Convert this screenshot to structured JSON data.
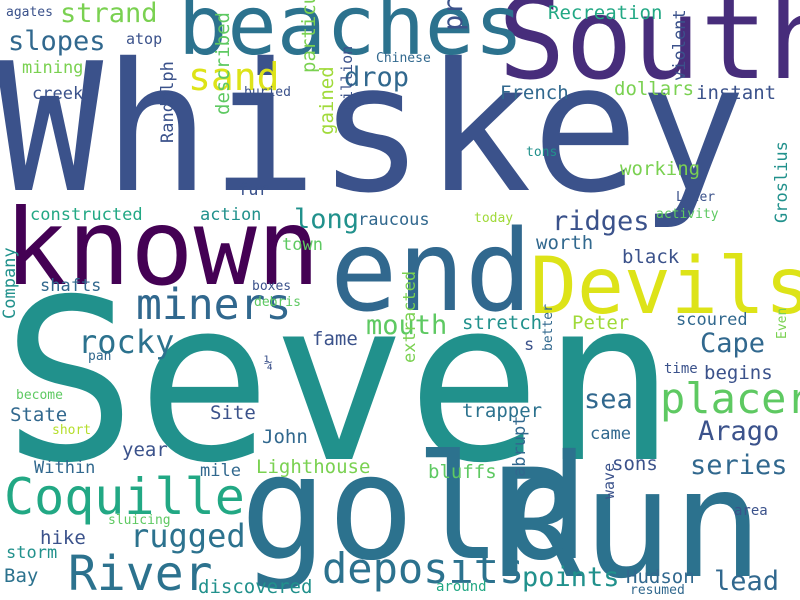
{
  "words": [
    {
      "text": "Whiskey",
      "color": "#3b528b"
    },
    {
      "text": "Seven",
      "color": "#21918c"
    },
    {
      "text": "Run",
      "color": "#2c728e"
    },
    {
      "text": "gold",
      "color": "#2c728e"
    },
    {
      "text": "South",
      "color": "#472d7b"
    },
    {
      "text": "known",
      "color": "#440154"
    },
    {
      "text": "end",
      "color": "#31688e"
    },
    {
      "text": "beaches",
      "color": "#2c728e"
    },
    {
      "text": "Devils",
      "color": "#dde318"
    },
    {
      "text": "Coquille",
      "color": "#22a884"
    },
    {
      "text": "River",
      "color": "#2c728e"
    },
    {
      "text": "miners",
      "color": "#31688e"
    },
    {
      "text": "deposits",
      "color": "#2c728e"
    },
    {
      "text": "placer",
      "color": "#5ec962"
    },
    {
      "text": "sand",
      "color": "#dde318"
    },
    {
      "text": "rugged",
      "color": "#2c728e"
    },
    {
      "text": "rocky",
      "color": "#2c728e"
    },
    {
      "text": "strand",
      "color": "#7ad151"
    },
    {
      "text": "slopes",
      "color": "#31688e"
    },
    {
      "text": "drop",
      "color": "#31688e"
    },
    {
      "text": "precipitously",
      "color": "#3b528b"
    },
    {
      "text": "long",
      "color": "#21918c"
    },
    {
      "text": "ridges",
      "color": "#3b528b"
    },
    {
      "text": "mouth",
      "color": "#5ec962"
    },
    {
      "text": "Cape",
      "color": "#31688e"
    },
    {
      "text": "Arago",
      "color": "#3b528b"
    },
    {
      "text": "series",
      "color": "#31688e"
    },
    {
      "text": "sea",
      "color": "#31688e"
    },
    {
      "text": "points",
      "color": "#21918c"
    },
    {
      "text": "lead",
      "color": "#31688e"
    },
    {
      "text": "Hudson",
      "color": "#31688e"
    },
    {
      "text": "trapper",
      "color": "#2c728e"
    },
    {
      "text": "Lighthouse",
      "color": "#7ad151"
    },
    {
      "text": "stretch",
      "color": "#21918c"
    },
    {
      "text": "Peter",
      "color": "#a0da39"
    },
    {
      "text": "fame",
      "color": "#3b528b"
    },
    {
      "text": "black",
      "color": "#3b528b"
    },
    {
      "text": "worth",
      "color": "#31688e"
    },
    {
      "text": "working",
      "color": "#7ad151"
    },
    {
      "text": "instant",
      "color": "#3b528b"
    },
    {
      "text": "dollars",
      "color": "#7ad151"
    },
    {
      "text": "French",
      "color": "#31688e"
    },
    {
      "text": "Recreation",
      "color": "#22a884"
    },
    {
      "text": "agates",
      "color": "#3b528b"
    },
    {
      "text": "atop",
      "color": "#3b528b"
    },
    {
      "text": "mining",
      "color": "#7ad151"
    },
    {
      "text": "creek",
      "color": "#3b528b"
    },
    {
      "text": "buried",
      "color": "#3b528b"
    },
    {
      "text": "Chinese",
      "color": "#31688e"
    },
    {
      "text": "constructed",
      "color": "#22a884"
    },
    {
      "text": "action",
      "color": "#21918c"
    },
    {
      "text": "raucous",
      "color": "#31688e"
    },
    {
      "text": "town",
      "color": "#5ec962"
    },
    {
      "text": "fur",
      "color": "#3b528b"
    },
    {
      "text": "shafts",
      "color": "#31688e"
    },
    {
      "text": "boxes",
      "color": "#3b528b"
    },
    {
      "text": "debris",
      "color": "#5ec962"
    },
    {
      "text": "State",
      "color": "#31688e"
    },
    {
      "text": "Site",
      "color": "#3b528b"
    },
    {
      "text": "John",
      "color": "#31688e"
    },
    {
      "text": "year",
      "color": "#3b528b"
    },
    {
      "text": "Within",
      "color": "#31688e"
    },
    {
      "text": "mile",
      "color": "#31688e"
    },
    {
      "text": "hike",
      "color": "#3b528b"
    },
    {
      "text": "storm",
      "color": "#21918c"
    },
    {
      "text": "Bay",
      "color": "#2c728e"
    },
    {
      "text": "discovered",
      "color": "#21918c"
    },
    {
      "text": "around",
      "color": "#22a884"
    },
    {
      "text": "resumed",
      "color": "#31688e"
    },
    {
      "text": "bluffs",
      "color": "#5ec962"
    },
    {
      "text": "sons",
      "color": "#3b528b"
    },
    {
      "text": "came",
      "color": "#31688e"
    },
    {
      "text": "begins",
      "color": "#3b528b"
    },
    {
      "text": "scoured",
      "color": "#31688e"
    },
    {
      "text": "time",
      "color": "#3b528b"
    },
    {
      "text": "area",
      "color": "#3b528b"
    },
    {
      "text": "today",
      "color": "#a0da39"
    },
    {
      "text": "activity",
      "color": "#5ec962"
    },
    {
      "text": "Later",
      "color": "#3b528b"
    },
    {
      "text": "tons",
      "color": "#21918c"
    },
    {
      "text": "short",
      "color": "#b5de2b"
    },
    {
      "text": "become",
      "color": "#5ec962"
    },
    {
      "text": "pan",
      "color": "#31688e"
    },
    {
      "text": "sluicing",
      "color": "#5ec962"
    },
    {
      "text": "s",
      "color": "#3b528b"
    },
    {
      "text": "¼",
      "color": "#3b528b"
    },
    {
      "text": "Company",
      "color": "#21918c"
    },
    {
      "text": "described",
      "color": "#5ec962"
    },
    {
      "text": "particular",
      "color": "#7ad151"
    },
    {
      "text": "gained",
      "color": "#a0da39"
    },
    {
      "text": "million",
      "color": "#3b528b"
    },
    {
      "text": "Randolph",
      "color": "#3b528b"
    },
    {
      "text": "violent",
      "color": "#3b528b"
    },
    {
      "text": "Groslius",
      "color": "#21918c"
    },
    {
      "text": "extracted",
      "color": "#7ad151"
    },
    {
      "text": "abrupt",
      "color": "#31688e"
    },
    {
      "text": "wave",
      "color": "#3b528b"
    },
    {
      "text": "better",
      "color": "#31688e"
    },
    {
      "text": "Even",
      "color": "#7ad151"
    }
  ]
}
